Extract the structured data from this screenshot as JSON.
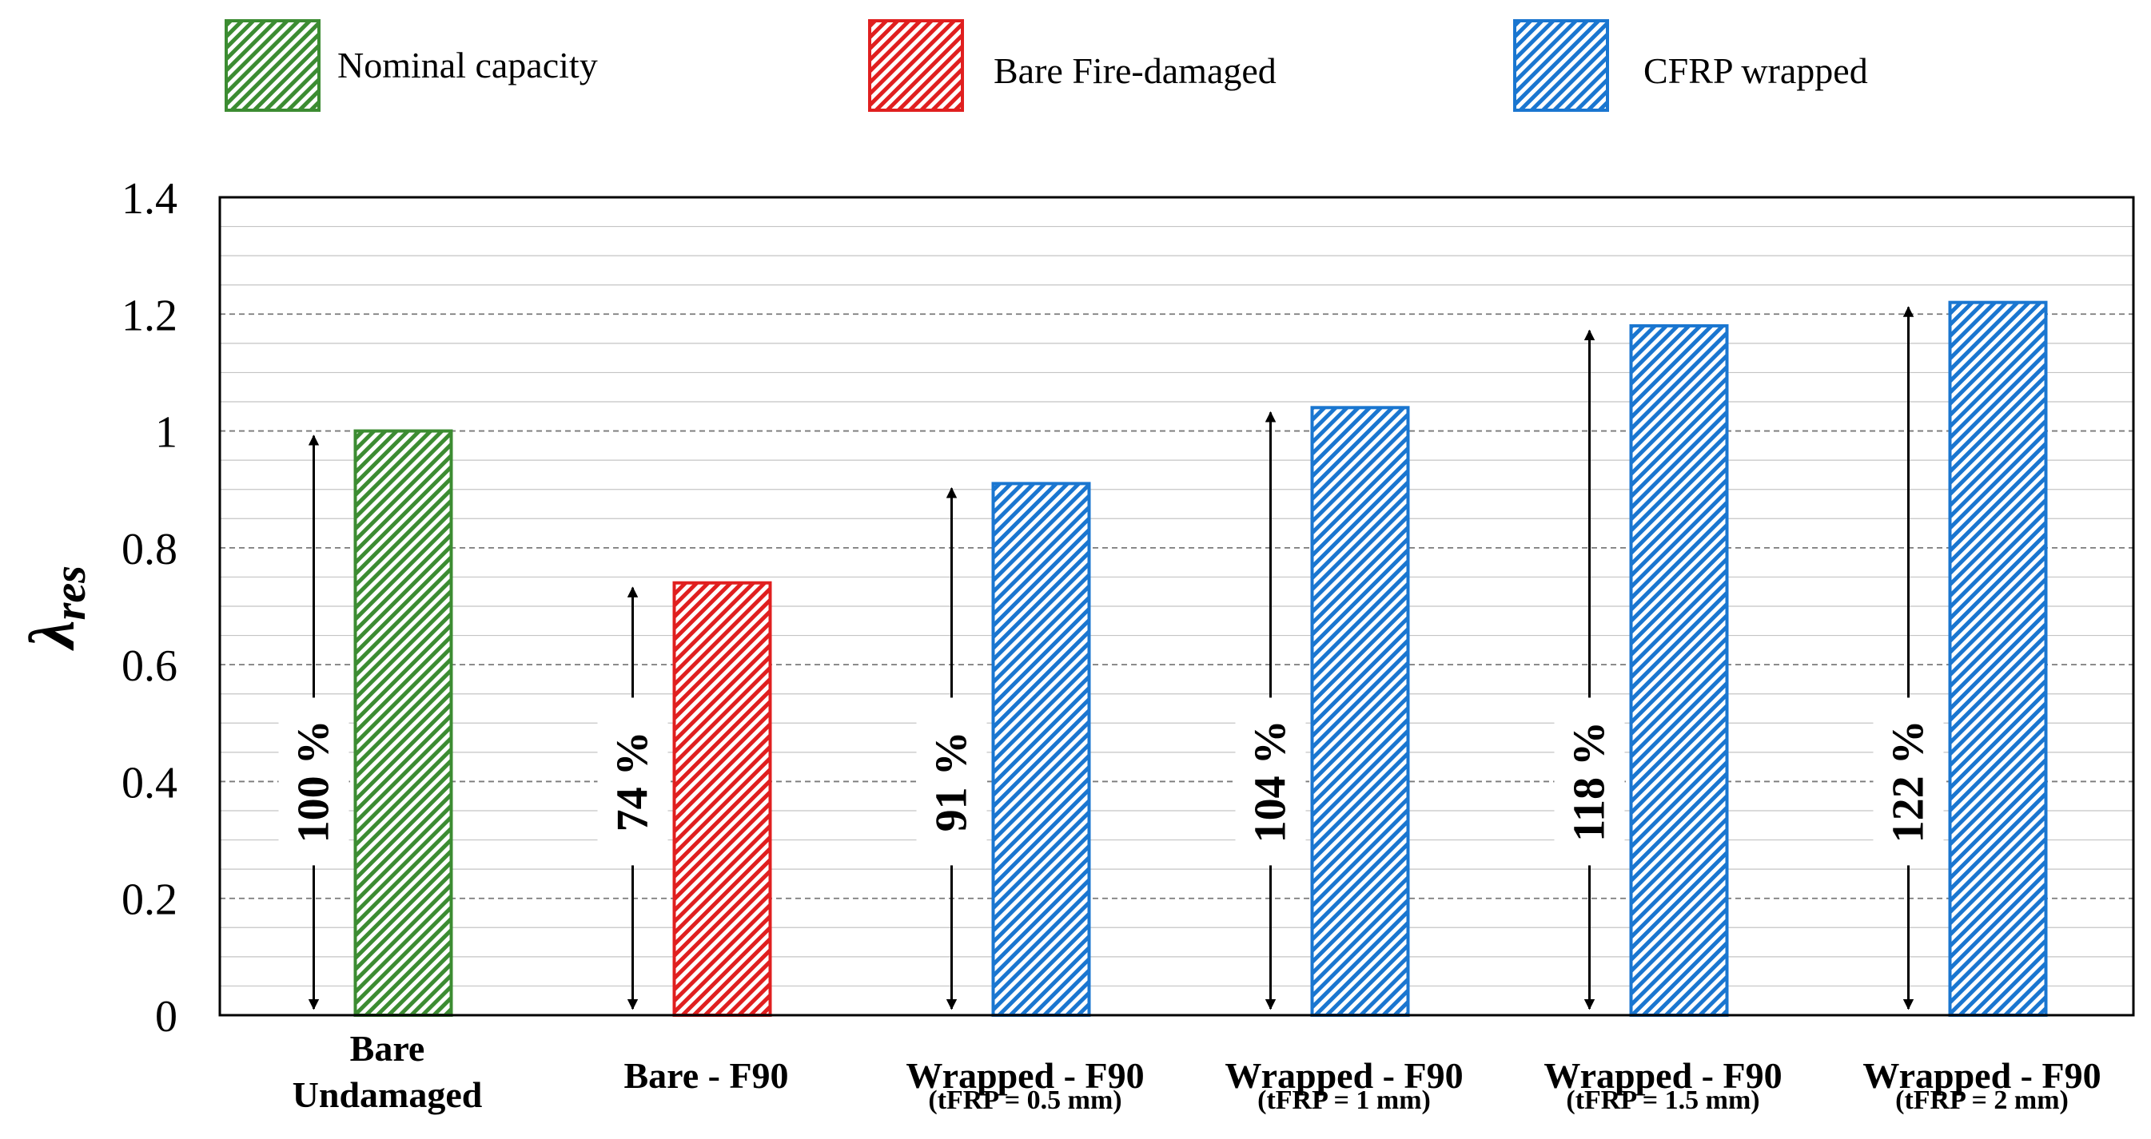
{
  "chart_data": {
    "type": "bar",
    "ylabel": "λ",
    "ylabel_sub": "res",
    "ylim": [
      0,
      1.4
    ],
    "yticks": [
      0,
      0.2,
      0.4,
      0.6,
      0.8,
      1,
      1.2,
      1.4
    ],
    "ytick_labels": [
      "0",
      "0.2",
      "0.4",
      "0.6",
      "0.8",
      "1",
      "1.2",
      "1.4"
    ],
    "minor_grid_step": 0.05,
    "grid": true,
    "legend": {
      "position": "top",
      "entries": [
        {
          "label": "Nominal capacity",
          "color": "#3c8c32"
        },
        {
          "label": "Bare Fire-damaged",
          "color": "#e01f1f"
        },
        {
          "label": "CFRP wrapped",
          "color": "#1a76d0"
        }
      ]
    },
    "bars": [
      {
        "label_line1": "Bare",
        "label_line2": "Undamaged",
        "sub": "",
        "value": 1.0,
        "annotation": "100 %",
        "group": 0
      },
      {
        "label_line1": "Bare - F90",
        "label_line2": "",
        "sub": "",
        "value": 0.74,
        "annotation": "74 %",
        "group": 1
      },
      {
        "label_line1": "Wrapped - F90",
        "label_line2": "",
        "sub": "(tFRP = 0.5 mm)",
        "value": 0.91,
        "annotation": "91 %",
        "group": 2
      },
      {
        "label_line1": "Wrapped - F90",
        "label_line2": "",
        "sub": "(tFRP = 1 mm)",
        "value": 1.04,
        "annotation": "104 %",
        "group": 2
      },
      {
        "label_line1": "Wrapped - F90",
        "label_line2": "",
        "sub": "(tFRP = 1.5 mm)",
        "value": 1.18,
        "annotation": "118 %",
        "group": 2
      },
      {
        "label_line1": "Wrapped - F90",
        "label_line2": "",
        "sub": "(tFRP = 2 mm)",
        "value": 1.22,
        "annotation": "122 %",
        "group": 2
      }
    ]
  }
}
